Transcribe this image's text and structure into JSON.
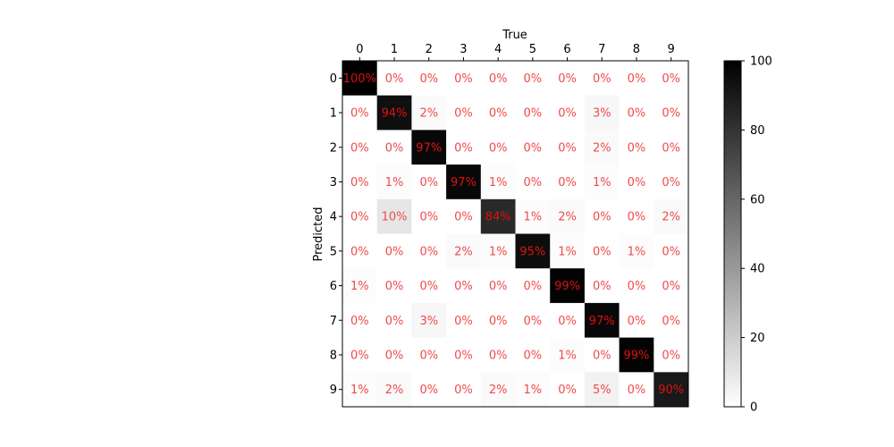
{
  "chart_data": {
    "type": "heatmap",
    "title": "",
    "xlabel": "True",
    "ylabel": "Predicted",
    "x_categories": [
      "0",
      "1",
      "2",
      "3",
      "4",
      "5",
      "6",
      "7",
      "8",
      "9"
    ],
    "y_categories": [
      "0",
      "1",
      "2",
      "3",
      "4",
      "5",
      "6",
      "7",
      "8",
      "9"
    ],
    "values": [
      [
        100,
        0,
        0,
        0,
        0,
        0,
        0,
        0,
        0,
        0
      ],
      [
        0,
        94,
        2,
        0,
        0,
        0,
        0,
        3,
        0,
        0
      ],
      [
        0,
        0,
        97,
        0,
        0,
        0,
        0,
        2,
        0,
        0
      ],
      [
        0,
        1,
        0,
        97,
        1,
        0,
        0,
        1,
        0,
        0
      ],
      [
        0,
        10,
        0,
        0,
        84,
        1,
        2,
        0,
        0,
        2
      ],
      [
        0,
        0,
        0,
        2,
        1,
        95,
        1,
        0,
        1,
        0
      ],
      [
        1,
        0,
        0,
        0,
        0,
        0,
        99,
        0,
        0,
        0
      ],
      [
        0,
        0,
        3,
        0,
        0,
        0,
        0,
        97,
        0,
        0
      ],
      [
        0,
        0,
        0,
        0,
        0,
        0,
        1,
        0,
        99,
        0
      ],
      [
        1,
        2,
        0,
        0,
        2,
        1,
        0,
        5,
        0,
        90
      ]
    ],
    "cell_labels": [
      [
        "100%",
        "0%",
        "0%",
        "0%",
        "0%",
        "0%",
        "0%",
        "0%",
        "0%",
        "0%"
      ],
      [
        "0%",
        "94%",
        "2%",
        "0%",
        "0%",
        "0%",
        "0%",
        "3%",
        "0%",
        "0%"
      ],
      [
        "0%",
        "0%",
        "97%",
        "0%",
        "0%",
        "0%",
        "0%",
        "2%",
        "0%",
        "0%"
      ],
      [
        "0%",
        "1%",
        "0%",
        "97%",
        "1%",
        "0%",
        "0%",
        "1%",
        "0%",
        "0%"
      ],
      [
        "0%",
        "10%",
        "0%",
        "0%",
        "84%",
        "1%",
        "2%",
        "0%",
        "0%",
        "2%"
      ],
      [
        "0%",
        "0%",
        "0%",
        "2%",
        "1%",
        "95%",
        "1%",
        "0%",
        "1%",
        "0%"
      ],
      [
        "1%",
        "0%",
        "0%",
        "0%",
        "0%",
        "0%",
        "99%",
        "0%",
        "0%",
        "0%"
      ],
      [
        "0%",
        "0%",
        "3%",
        "0%",
        "0%",
        "0%",
        "0%",
        "97%",
        "0%",
        "0%"
      ],
      [
        "0%",
        "0%",
        "0%",
        "0%",
        "0%",
        "0%",
        "1%",
        "0%",
        "99%",
        "0%"
      ],
      [
        "1%",
        "2%",
        "0%",
        "0%",
        "2%",
        "1%",
        "0%",
        "5%",
        "0%",
        "90%"
      ]
    ],
    "colormap": "grayscale-reversed",
    "cell_label_colors": {
      "light_cell": "#f04a4a",
      "dark_cell": "#e01010"
    },
    "colorbar": {
      "min": 0,
      "max": 100,
      "ticks": [
        0,
        20,
        40,
        60,
        80,
        100
      ]
    },
    "x_axis_position": "top",
    "grid": false
  }
}
